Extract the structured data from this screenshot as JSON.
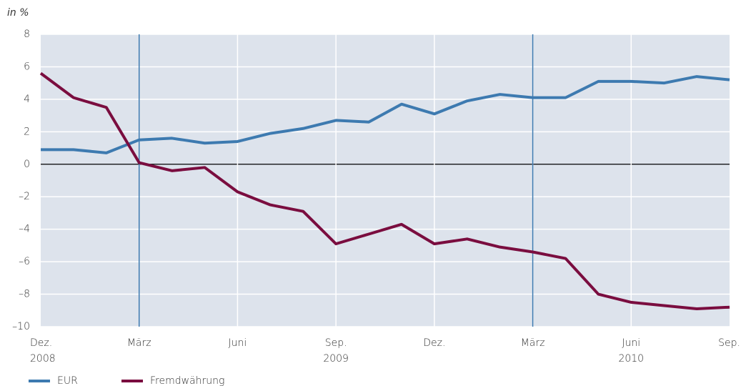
{
  "chart_data": {
    "type": "line",
    "y_label": "in %",
    "categories": [
      "Dez.",
      null,
      null,
      "März",
      null,
      null,
      "Juni",
      null,
      null,
      "Sep.",
      null,
      null,
      "Dez.",
      null,
      null,
      "März",
      null,
      null,
      "Juni",
      null,
      null,
      "Sep."
    ],
    "category_years": [
      "2008",
      null,
      null,
      null,
      null,
      null,
      null,
      null,
      null,
      "2009",
      null,
      null,
      null,
      null,
      null,
      null,
      null,
      null,
      "2010",
      null,
      null,
      null
    ],
    "series": [
      {
        "name": "EUR",
        "color": "#3d7ab0",
        "values": [
          0.9,
          0.9,
          0.7,
          1.5,
          1.6,
          1.3,
          1.4,
          1.9,
          2.2,
          2.7,
          2.6,
          3.7,
          3.1,
          3.9,
          4.3,
          4.1,
          4.1,
          5.1,
          5.1,
          5.0,
          5.4,
          5.2
        ]
      },
      {
        "name": "Fremdwährung",
        "color": "#7a0d3f",
        "values": [
          5.6,
          4.1,
          3.5,
          0.1,
          -0.4,
          -0.2,
          -1.7,
          -2.5,
          -2.9,
          -4.9,
          -4.3,
          -3.7,
          -4.9,
          -4.6,
          -5.1,
          -5.4,
          -5.8,
          -8.0,
          -8.5,
          -8.7,
          -8.9,
          -8.8
        ]
      }
    ],
    "ylim": [
      -10,
      8
    ],
    "yticks": [
      {
        "value": -10,
        "label": "–10"
      },
      {
        "value": -8,
        "label": "–8"
      },
      {
        "value": -6,
        "label": "–6"
      },
      {
        "value": -4,
        "label": "–4"
      },
      {
        "value": -2,
        "label": "–2"
      },
      0,
      2,
      4,
      6,
      8
    ],
    "grid": true,
    "plot_background": "#dde3ec",
    "vline_categories": [
      3,
      15
    ],
    "vline_color": "#3d7ab0"
  }
}
